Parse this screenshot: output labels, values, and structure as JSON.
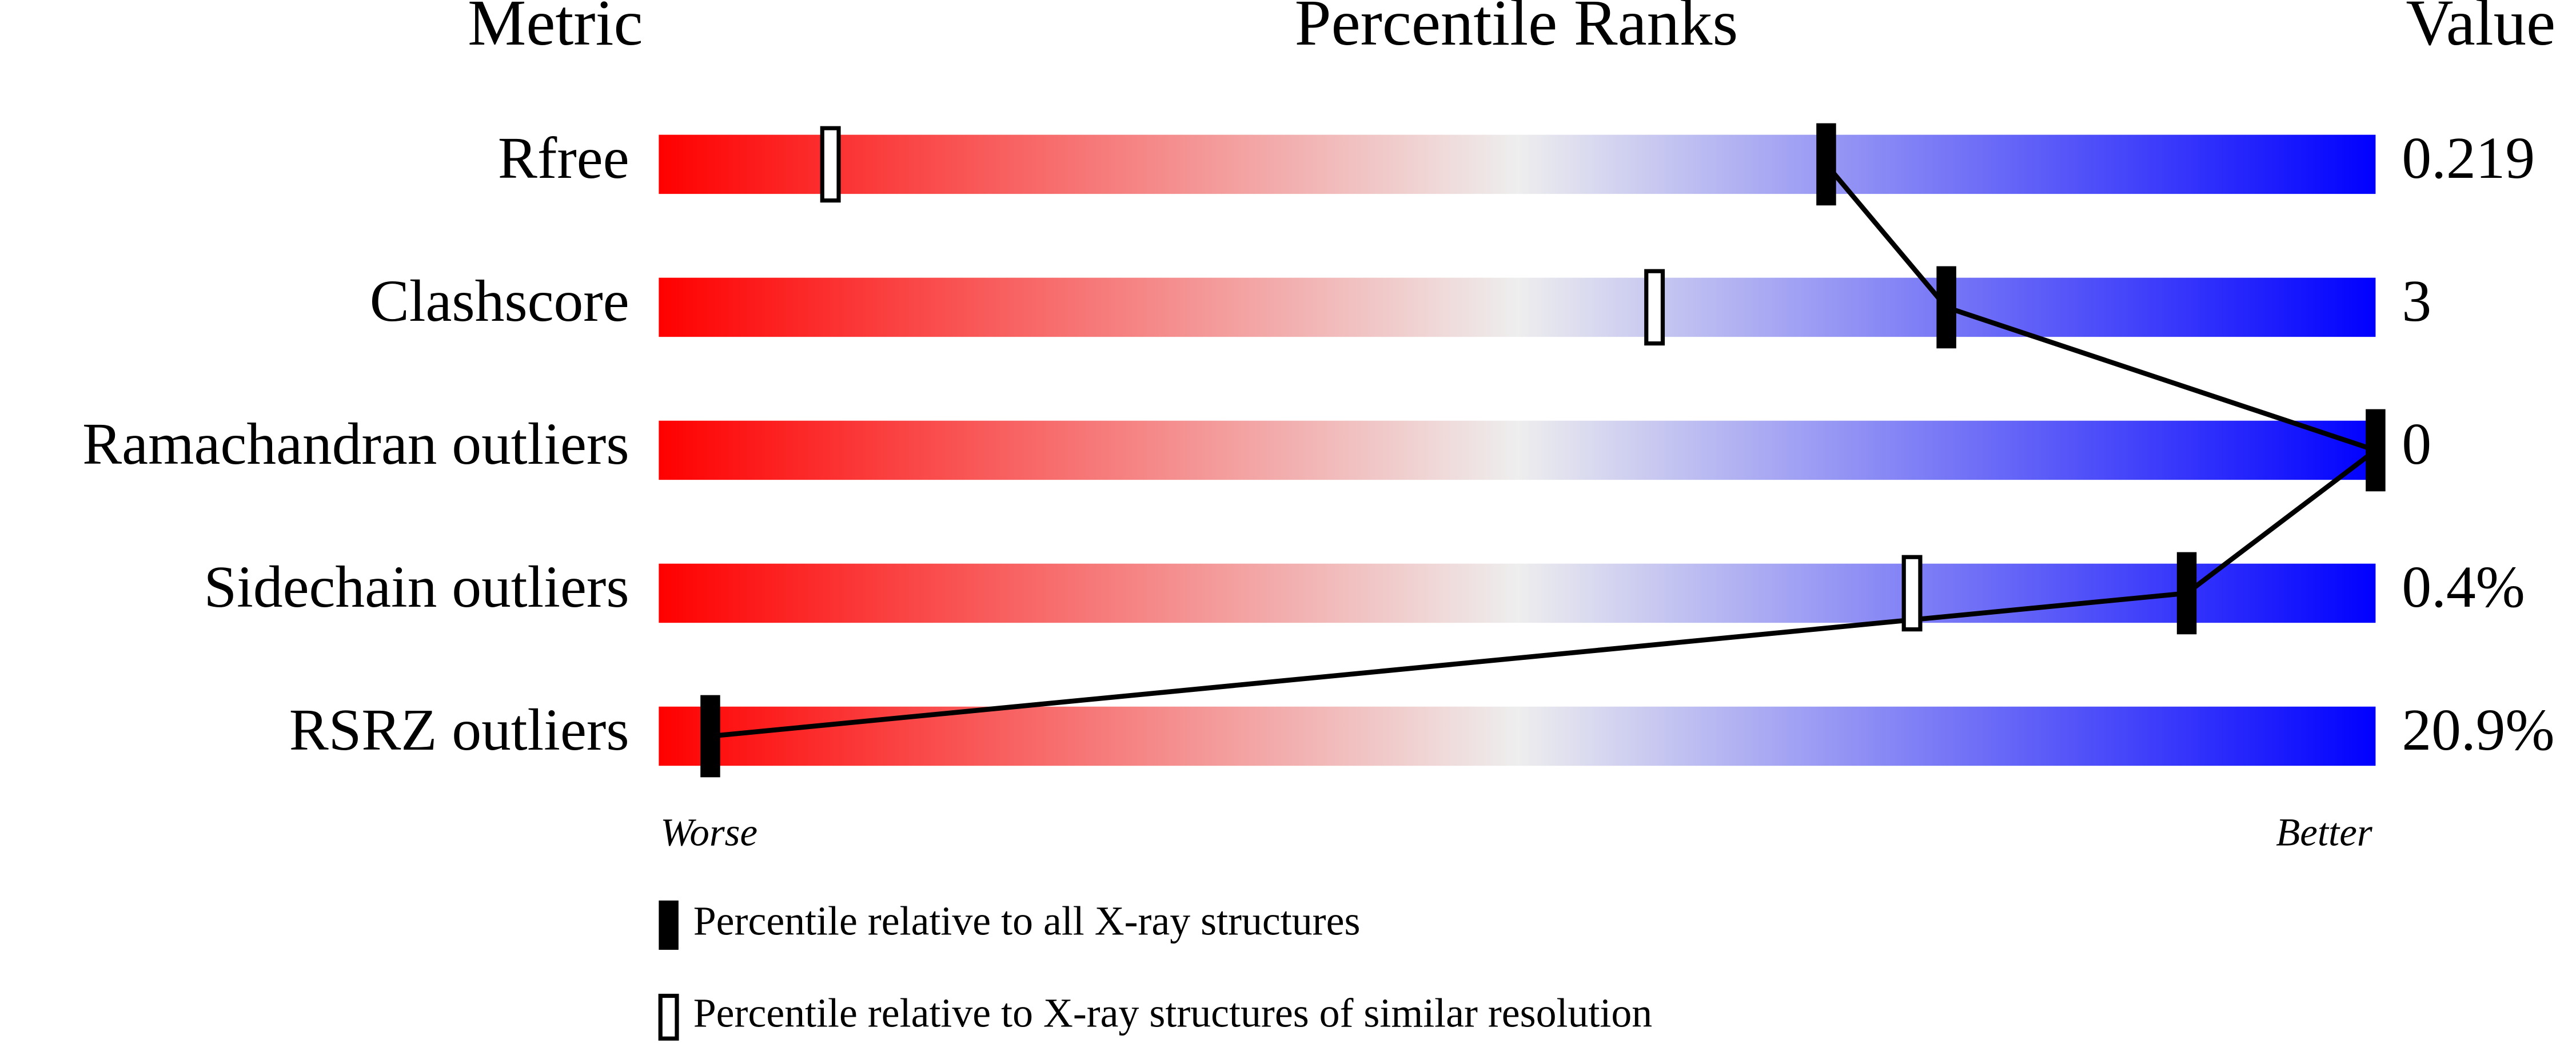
{
  "chart_data": {
    "type": "percentile-slider",
    "headers": [
      "Metric",
      "Percentile Ranks",
      "Value"
    ],
    "categories": [
      "Rfree",
      "Clashscore",
      "Ramachandran outliers",
      "Sidechain outliers",
      "RSRZ outliers"
    ],
    "metric_values": [
      "0.219",
      "3",
      "0",
      "0.4%",
      "20.9%"
    ],
    "xlim": [
      0,
      100
    ],
    "axis_labels": [
      "Worse",
      "Better"
    ],
    "gradient": [
      "#ff0000",
      "#eeeeee",
      "#0000ff"
    ],
    "series": [
      {
        "name": "Percentile relative to all X-ray structures",
        "color": "#000000",
        "filled": true,
        "values": [
          68,
          75,
          100,
          89,
          3
        ]
      },
      {
        "name": "Percentile relative to X-ray structures of similar resolution",
        "color": "#000000",
        "filled": false,
        "values": [
          10,
          58,
          null,
          73,
          null
        ]
      }
    ]
  }
}
